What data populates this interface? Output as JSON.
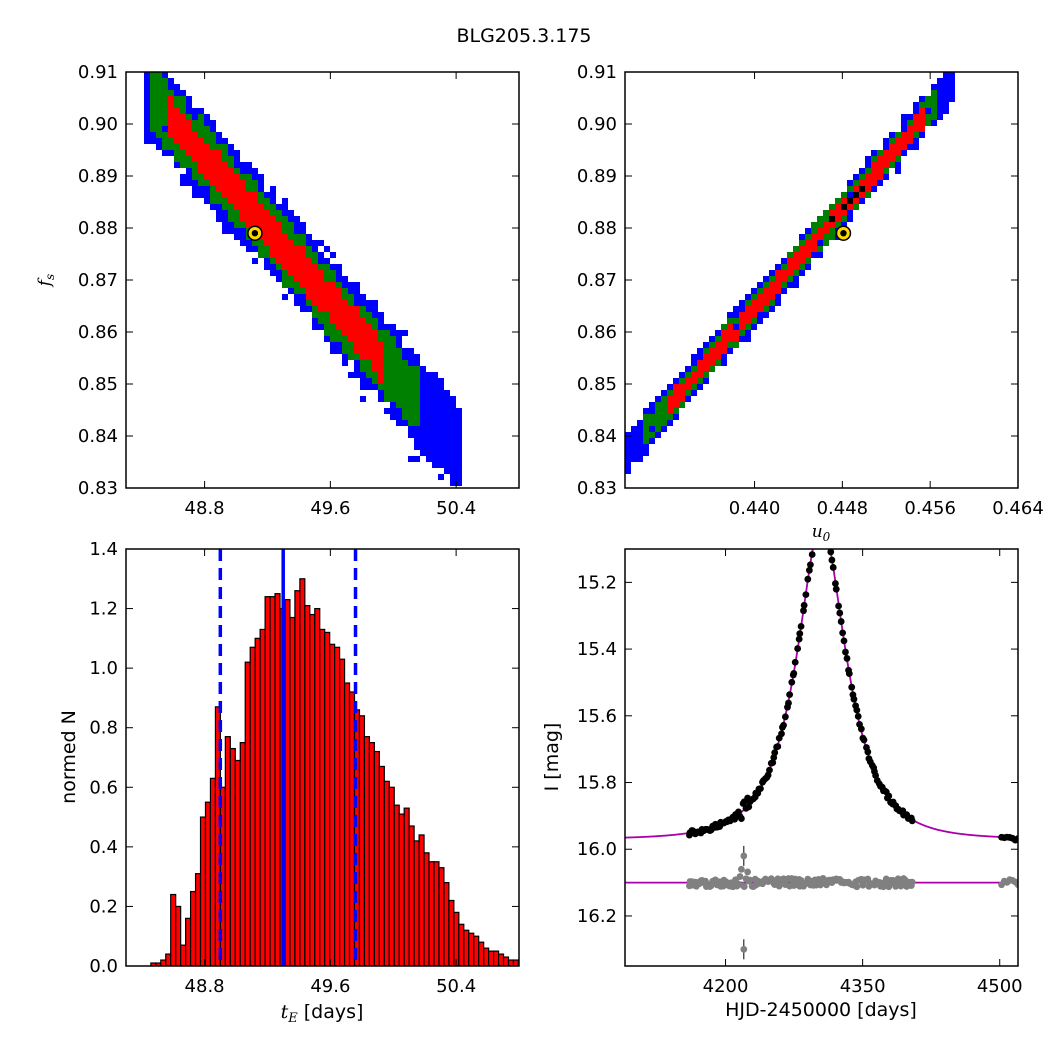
{
  "figure": {
    "title": "BLG205.3.175"
  },
  "chart_data": [
    {
      "id": "fs_vs_tE",
      "type": "heatmap",
      "title": "",
      "xlabel": "",
      "ylabel": "f_s",
      "xlim": [
        48.3,
        50.8
      ],
      "ylim": [
        0.83,
        0.91
      ],
      "xticks": [
        "48.8",
        "49.6",
        "50.4"
      ],
      "yticks": [
        "0.83",
        "0.84",
        "0.85",
        "0.86",
        "0.87",
        "0.88",
        "0.89",
        "0.90",
        "0.91"
      ],
      "colors": {
        "sigma3": "#0000ff",
        "sigma2": "#008000",
        "sigma1": "#ff0000"
      },
      "correlation": "negative",
      "best_fit": {
        "x": 49.12,
        "y": 0.879
      },
      "band_half_width_y": {
        "sigma1": 0.0038,
        "sigma2": 0.0062,
        "sigma3": 0.0085
      },
      "band_extent_x": {
        "sigma1": [
          48.55,
          49.95
        ],
        "sigma2": [
          48.45,
          50.18
        ],
        "sigma3": [
          48.4,
          50.45
        ]
      }
    },
    {
      "id": "fs_vs_u0",
      "type": "heatmap",
      "title": "",
      "xlabel": "u_0",
      "ylabel": "",
      "xlim": [
        0.4282,
        0.464
      ],
      "ylim": [
        0.83,
        0.91
      ],
      "xticks": [
        "0.440",
        "0.448",
        "0.456",
        "0.464"
      ],
      "yticks": [
        "0.83",
        "0.84",
        "0.85",
        "0.86",
        "0.87",
        "0.88",
        "0.89",
        "0.90",
        "0.91"
      ],
      "colors": {
        "sigma3": "#0000ff",
        "sigma2": "#008000",
        "sigma1": "#ff0000",
        "core": "#000000"
      },
      "correlation": "positive",
      "best_fit": {
        "x": 0.4481,
        "y": 0.879
      },
      "band_half_width_y": {
        "sigma1": 0.0018,
        "sigma2": 0.0028,
        "sigma3": 0.0038
      },
      "band_extent_x": {
        "sigma1": [
          0.4318,
          0.4555
        ],
        "sigma2": [
          0.43,
          0.4568
        ],
        "sigma3": [
          0.4283,
          0.458
        ]
      }
    },
    {
      "id": "tE_histogram",
      "type": "bar",
      "title": "",
      "xlabel": "t_E [days]",
      "xlabel_unit": "[days]",
      "ylabel": "normed N",
      "xlim": [
        48.3,
        50.8
      ],
      "ylim": [
        0.0,
        1.4
      ],
      "xticks": [
        "48.8",
        "49.6",
        "50.4"
      ],
      "yticks": [
        "0.0",
        "0.2",
        "0.4",
        "0.6",
        "0.8",
        "1.0",
        "1.2",
        "1.4"
      ],
      "bar_color": "#ff0000",
      "bin_start": 48.3,
      "bin_width": 0.0316,
      "values": [
        0.0,
        0.0,
        0.0,
        0.0,
        0.0,
        0.01,
        0.01,
        0.02,
        0.04,
        0.24,
        0.2,
        0.07,
        0.16,
        0.25,
        0.31,
        0.5,
        0.55,
        0.63,
        0.87,
        0.6,
        0.77,
        0.73,
        0.69,
        0.75,
        1.02,
        1.07,
        1.1,
        1.13,
        1.24,
        1.24,
        1.25,
        1.2,
        1.23,
        1.17,
        1.26,
        1.3,
        1.21,
        1.18,
        1.2,
        1.13,
        1.12,
        1.08,
        1.07,
        1.03,
        0.95,
        0.92,
        0.86,
        0.84,
        0.77,
        0.75,
        0.72,
        0.67,
        0.62,
        0.6,
        0.54,
        0.51,
        0.53,
        0.47,
        0.42,
        0.44,
        0.38,
        0.35,
        0.35,
        0.33,
        0.28,
        0.22,
        0.18,
        0.14,
        0.12,
        0.11,
        0.1,
        0.08,
        0.06,
        0.05,
        0.05,
        0.04,
        0.03,
        0.02,
        0.02,
        0.02,
        0.01,
        0.01
      ],
      "median": 49.3,
      "lower": 48.9,
      "upper": 49.76,
      "line_color": "#0000ff"
    },
    {
      "id": "light_curve",
      "type": "scatter",
      "title": "",
      "xlabel": "HJD-2450000 [days]",
      "ylabel": "I [mag]",
      "xlim": [
        4090,
        4520
      ],
      "ylim": [
        16.35,
        15.1
      ],
      "xticks": [
        "4200",
        "4350",
        "4500"
      ],
      "yticks": [
        "15.2",
        "15.4",
        "15.6",
        "15.8",
        "16.0",
        "16.2"
      ],
      "model": {
        "t0": 4305,
        "tE": 49.3,
        "u0": 0.448,
        "I_source": 15.97,
        "baseline": 15.97,
        "color": "#aa00aa"
      },
      "data_color": "#000000",
      "residual_color": "#808080",
      "residual_offset": 16.1,
      "observed_range": [
        4150,
        4520
      ]
    }
  ]
}
